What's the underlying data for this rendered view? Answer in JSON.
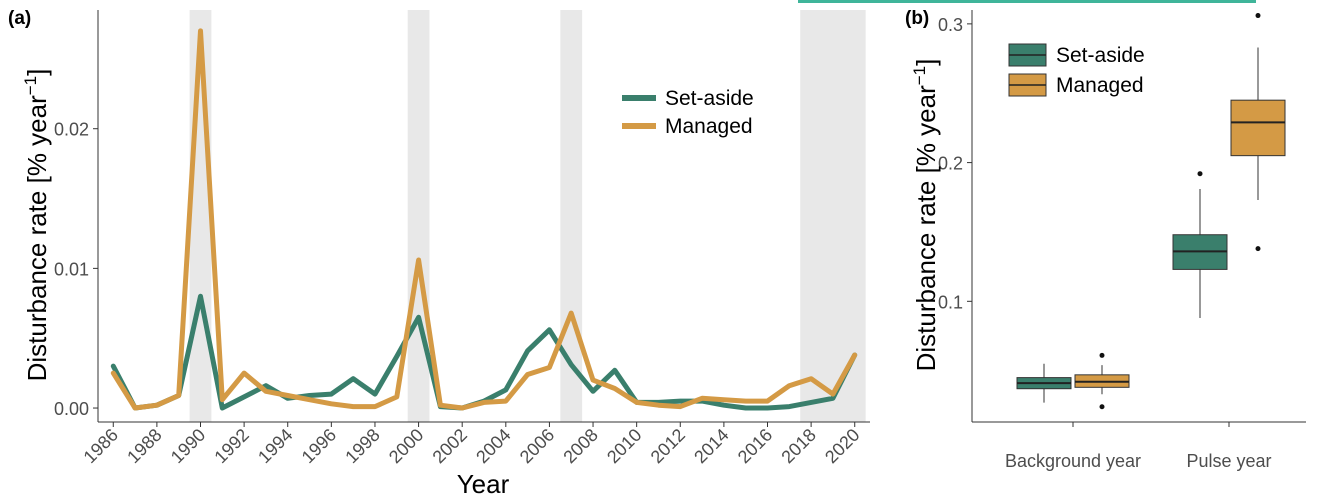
{
  "chart_data": [
    {
      "panel": "(a)",
      "type": "line",
      "xlabel": "Year",
      "ylabel": "Disturbance rate [% year",
      "ylabel_sup": "−1",
      "ylabel_close": "]",
      "ylim": [
        -0.001,
        0.0285
      ],
      "yticks": [
        0.0,
        0.01,
        0.02
      ],
      "ytick_labels": [
        "0.00",
        "0.01",
        "0.02"
      ],
      "xlim": [
        1985.3,
        2020.7
      ],
      "xticks": [
        1986,
        1988,
        1990,
        1992,
        1994,
        1996,
        1998,
        2000,
        2002,
        2004,
        2006,
        2008,
        2010,
        2012,
        2014,
        2016,
        2018,
        2020
      ],
      "xtick_labels": [
        "1986",
        "1988",
        "1990",
        "1992",
        "1994",
        "1996",
        "1998",
        "2000",
        "2002",
        "2004",
        "2006",
        "2008",
        "2010",
        "2012",
        "2014",
        "2016",
        "2018",
        "2020"
      ],
      "grid": false,
      "legend_position": "top-right",
      "highlight_years": [
        [
          1989.5,
          1990.5
        ],
        [
          1999.5,
          2000.5
        ],
        [
          2006.5,
          2007.5
        ],
        [
          2017.5,
          2020.5
        ]
      ],
      "x": [
        1986,
        1987,
        1988,
        1989,
        1990,
        1991,
        1992,
        1993,
        1994,
        1995,
        1996,
        1997,
        1998,
        1999,
        2000,
        2001,
        2002,
        2003,
        2004,
        2005,
        2006,
        2007,
        2008,
        2009,
        2010,
        2011,
        2012,
        2013,
        2014,
        2015,
        2016,
        2017,
        2018,
        2019,
        2020
      ],
      "series": [
        {
          "name": "Set-aside",
          "color": "#3a7f6c",
          "values": [
            0.003,
            0.0,
            0.0002,
            0.0009,
            0.008,
            0.0,
            0.0008,
            0.0016,
            0.0007,
            0.0009,
            0.001,
            0.0021,
            0.001,
            0.0037,
            0.0065,
            0.0001,
            0.0,
            0.0005,
            0.0013,
            0.0041,
            0.0056,
            0.0031,
            0.0012,
            0.0027,
            0.0004,
            0.0004,
            0.0005,
            0.0005,
            0.0002,
            0.0,
            0.0,
            0.0001,
            0.0004,
            0.0007,
            0.0038
          ]
        },
        {
          "name": "Managed",
          "color": "#d49a45",
          "values": [
            0.0025,
            0.0,
            0.0002,
            0.0009,
            0.027,
            0.0006,
            0.0025,
            0.0012,
            0.0009,
            0.0006,
            0.0003,
            0.0001,
            0.0001,
            0.0008,
            0.0106,
            0.0002,
            0.0,
            0.0004,
            0.0005,
            0.0024,
            0.0029,
            0.0068,
            0.002,
            0.0014,
            0.0004,
            0.0002,
            0.0001,
            0.0007,
            0.0006,
            0.0005,
            0.0005,
            0.0016,
            0.0021,
            0.001,
            0.0038
          ]
        }
      ]
    },
    {
      "panel": "(b)",
      "type": "box",
      "ylabel": "Disturbance rate [% year",
      "ylabel_sup": "−1",
      "ylabel_close": "]",
      "ylim": [
        0.013,
        0.31
      ],
      "yticks": [
        0.1,
        0.2,
        0.3
      ],
      "ytick_labels": [
        "0.1",
        "0.2",
        "0.3"
      ],
      "categories": [
        "Background year",
        "Pulse year"
      ],
      "grid": false,
      "legend_position": "top-left",
      "series": [
        {
          "name": "Set-aside",
          "color": "#3a7f6c",
          "boxes": [
            {
              "min": 0.027,
              "q1": 0.037,
              "median": 0.041,
              "q3": 0.045,
              "max": 0.055,
              "outliers": []
            },
            {
              "min": 0.088,
              "q1": 0.123,
              "median": 0.136,
              "q3": 0.148,
              "max": 0.181,
              "outliers": [
                0.192
              ]
            }
          ]
        },
        {
          "name": "Managed",
          "color": "#d49a45",
          "boxes": [
            {
              "min": 0.033,
              "q1": 0.038,
              "median": 0.042,
              "q3": 0.047,
              "max": 0.054,
              "outliers": [
                0.024,
                0.061
              ]
            },
            {
              "min": 0.173,
              "q1": 0.205,
              "median": 0.229,
              "q3": 0.245,
              "max": 0.283,
              "outliers": [
                0.306,
                0.138
              ]
            }
          ]
        }
      ]
    }
  ]
}
